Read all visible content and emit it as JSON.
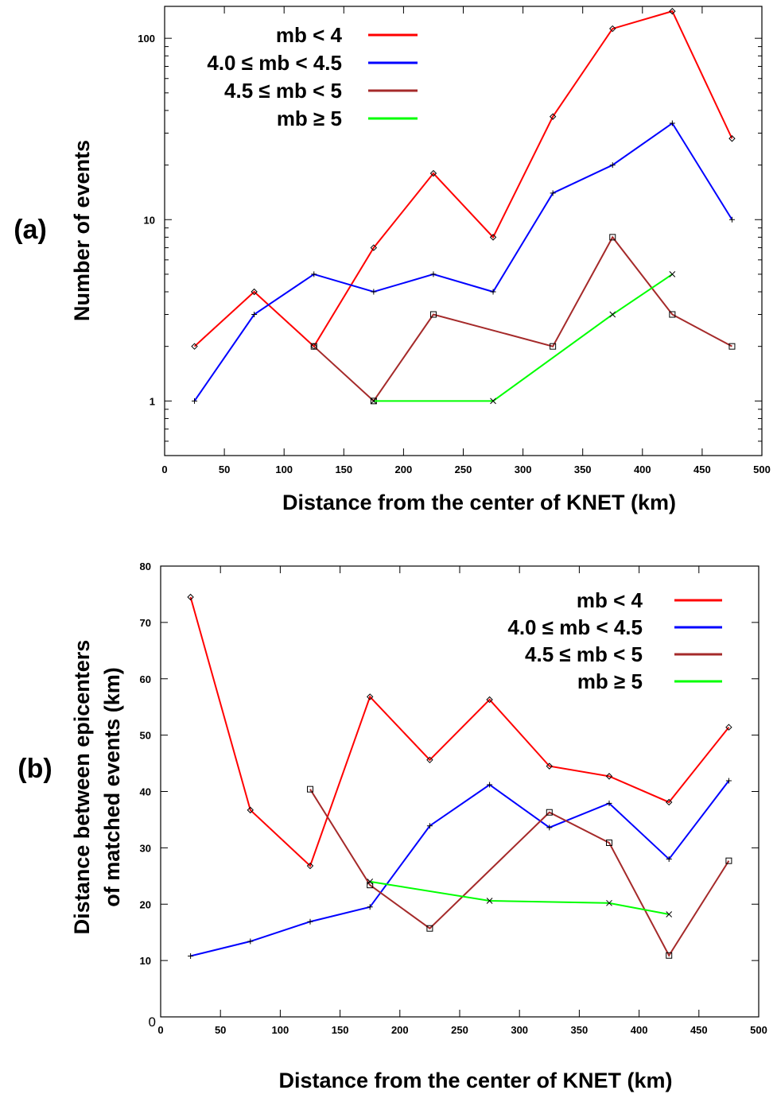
{
  "chart_data": [
    {
      "type": "line",
      "panel_label": "(a)",
      "xlabel": "Distance from the center of KNET (km)",
      "ylabel": "Number of events",
      "xlim": [
        0,
        500
      ],
      "ylim": [
        0.5,
        150
      ],
      "yscale": "log",
      "x_ticks": [
        "0",
        "50",
        "100",
        "150",
        "200",
        "250",
        "300",
        "350",
        "400",
        "450",
        "500"
      ],
      "y_ticks": [
        "1",
        "10",
        "100"
      ],
      "legend_position": "top-left",
      "series": [
        {
          "name": "mb < 4",
          "color": "#ff0000",
          "marker": "diamond",
          "x": [
            25,
            75,
            125,
            175,
            225,
            275,
            325,
            375,
            425,
            475
          ],
          "y": [
            2,
            4,
            2,
            7,
            18,
            8,
            37,
            113,
            141,
            28
          ]
        },
        {
          "name": "4.0 ≤ mb < 4.5",
          "color": "#0000ff",
          "marker": "plus",
          "x": [
            25,
            75,
            125,
            175,
            225,
            275,
            325,
            375,
            425,
            475
          ],
          "y": [
            1,
            3,
            5,
            4,
            5,
            4,
            14,
            20,
            34,
            10
          ]
        },
        {
          "name": "4.5 ≤ mb < 5",
          "color": "#a52a2a",
          "marker": "square",
          "x": [
            125,
            175,
            225,
            325,
            375,
            425,
            475
          ],
          "y": [
            2,
            1,
            3,
            2,
            8,
            3,
            2
          ]
        },
        {
          "name": "mb ≥ 5",
          "color": "#00ff00",
          "marker": "cross",
          "x": [
            175,
            275,
            375,
            425
          ],
          "y": [
            1,
            1,
            3,
            5
          ]
        }
      ]
    },
    {
      "type": "line",
      "panel_label": "(b)",
      "xlabel": "Distance from the center of KNET (km)",
      "ylabel_lines": [
        "Distance between epicenters",
        "of matched events (km)"
      ],
      "xlim": [
        0,
        500
      ],
      "ylim": [
        0,
        80
      ],
      "yscale": "linear",
      "x_ticks": [
        "0",
        "50",
        "100",
        "150",
        "200",
        "250",
        "300",
        "350",
        "400",
        "450",
        "500"
      ],
      "y_ticks": [
        "0",
        "10",
        "20",
        "30",
        "40",
        "50",
        "60",
        "70",
        "80"
      ],
      "legend_position": "top-right",
      "series": [
        {
          "name": "mb < 4",
          "color": "#ff0000",
          "marker": "diamond",
          "x": [
            25,
            75,
            125,
            175,
            225,
            275,
            325,
            375,
            425,
            475
          ],
          "y": [
            74.5,
            36.7,
            26.8,
            56.8,
            45.6,
            56.3,
            44.5,
            42.7,
            38.1,
            51.4
          ]
        },
        {
          "name": "4.0 ≤ mb < 4.5",
          "color": "#0000ff",
          "marker": "plus",
          "x": [
            25,
            75,
            125,
            175,
            225,
            275,
            325,
            375,
            425,
            475
          ],
          "y": [
            10.8,
            13.4,
            16.9,
            19.5,
            33.9,
            41.2,
            33.6,
            37.9,
            28,
            41.9
          ]
        },
        {
          "name": "4.5 ≤ mb < 5",
          "color": "#a52a2a",
          "marker": "square",
          "x": [
            125,
            175,
            225,
            325,
            375,
            425,
            475
          ],
          "y": [
            40.4,
            23.4,
            15.7,
            36.3,
            30.9,
            10.9,
            27.7
          ]
        },
        {
          "name": "mb ≥ 5",
          "color": "#00ff00",
          "marker": "cross",
          "x": [
            175,
            275,
            375,
            425
          ],
          "y": [
            24,
            20.6,
            20.2,
            18.2
          ]
        }
      ]
    }
  ]
}
